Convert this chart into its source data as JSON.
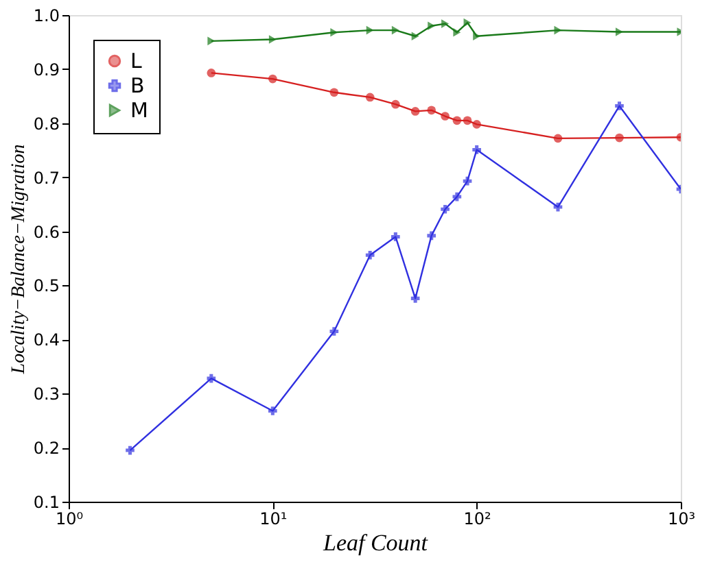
{
  "chart_data": {
    "type": "line",
    "xlabel": "Leaf Count",
    "ylabel": "Locality−Balance−Migration",
    "x": [
      2,
      5,
      10,
      20,
      30,
      40,
      50,
      60,
      70,
      80,
      90,
      100,
      250,
      500,
      1000
    ],
    "series": [
      {
        "name": "L",
        "color": "#d62020",
        "marker": "circle",
        "values": [
          null,
          0.893,
          0.882,
          0.857,
          0.848,
          0.835,
          0.822,
          0.824,
          0.813,
          0.805,
          0.805,
          0.798,
          0.772,
          0.773,
          0.774
        ]
      },
      {
        "name": "B",
        "color": "#3030e0",
        "marker": "cross",
        "values": [
          0.195,
          0.328,
          0.268,
          0.415,
          0.556,
          0.59,
          0.476,
          0.592,
          0.641,
          0.664,
          0.693,
          0.751,
          0.645,
          0.832,
          0.678
        ]
      },
      {
        "name": "M",
        "color": "#1a7a1a",
        "marker": "triangle",
        "values": [
          null,
          0.952,
          0.955,
          0.968,
          0.972,
          0.972,
          0.961,
          0.98,
          0.984,
          0.968,
          0.986,
          0.961,
          0.972,
          0.969,
          0.969
        ]
      }
    ],
    "log": "x",
    "xlim": [
      1,
      1000
    ],
    "xticks": [
      {
        "value": 1,
        "label": "10⁰"
      },
      {
        "value": 10,
        "label": "10¹"
      },
      {
        "value": 100,
        "label": "10²"
      },
      {
        "value": 1000,
        "label": "10³"
      }
    ],
    "ylim": [
      0.1,
      1.0
    ],
    "yticks": [
      0.1,
      0.2,
      0.3,
      0.4,
      0.5,
      0.6,
      0.7,
      0.8,
      0.9,
      {
        "value": 1.0,
        "label": "1.0"
      }
    ],
    "grid": false,
    "legend": "top left",
    "line_style": "solid"
  }
}
